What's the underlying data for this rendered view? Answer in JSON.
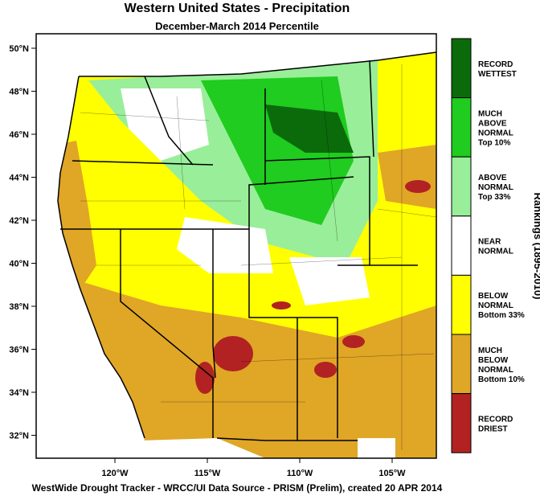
{
  "header": {
    "title": "Western United States - Precipitation",
    "subtitle": "December-March 2014 Percentile"
  },
  "axes": {
    "lat_labels": [
      "50°N",
      "48°N",
      "46°N",
      "44°N",
      "42°N",
      "40°N",
      "38°N",
      "36°N",
      "34°N",
      "32°N"
    ],
    "lon_labels": [
      "120°W",
      "115°W",
      "110°W",
      "105°W"
    ]
  },
  "legend": {
    "title": "Rankings (1895-2010)",
    "items": [
      {
        "lines": [
          "RECORD",
          "WETTEST"
        ],
        "color": "#0b6b0b"
      },
      {
        "lines": [
          "MUCH",
          "ABOVE",
          "NORMAL",
          "Top 10%"
        ],
        "color": "#1fcc1f"
      },
      {
        "lines": [
          "ABOVE",
          "NORMAL",
          "Top 33%"
        ],
        "color": "#99ee99"
      },
      {
        "lines": [
          "NEAR",
          "NORMAL"
        ],
        "color": "#ffffff"
      },
      {
        "lines": [
          "BELOW",
          "NORMAL",
          "Bottom 33%"
        ],
        "color": "#ffff00"
      },
      {
        "lines": [
          "MUCH",
          "BELOW",
          "NORMAL",
          "Bottom 10%"
        ],
        "color": "#e0a626"
      },
      {
        "lines": [
          "RECORD",
          "DRIEST"
        ],
        "color": "#b22222"
      }
    ]
  },
  "footer": "WestWide Drought Tracker - WRCC/UI  Data Source - PRISM (Prelim), created 20 APR 2014"
}
